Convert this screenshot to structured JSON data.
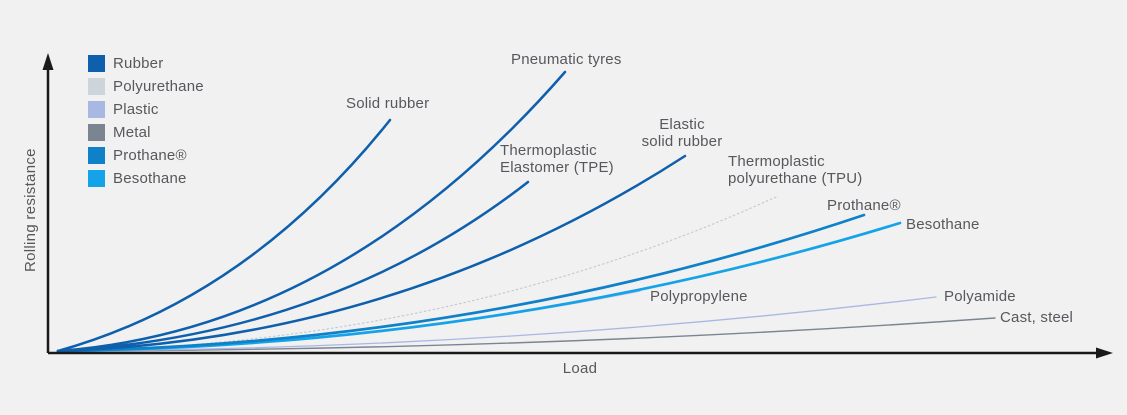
{
  "figure": {
    "background": "#f1f1f2",
    "axis_color": "#1a1a1a",
    "text_color": "#57585c",
    "xlabel": "Load",
    "ylabel": "Rolling resistance"
  },
  "legend": {
    "items": [
      {
        "label": "Rubber",
        "color": "#0e5fac"
      },
      {
        "label": "Polyurethane",
        "color": "#cdd4da"
      },
      {
        "label": "Plastic",
        "color": "#a9b8e3"
      },
      {
        "label": "Metal",
        "color": "#7b8591"
      },
      {
        "label": "Prothane®",
        "color": "#0e81c8"
      },
      {
        "label": "Besothane",
        "color": "#14a3e8"
      }
    ]
  },
  "annotations": {
    "pneumatic": {
      "line1": "Pneumatic tyres"
    },
    "solid_rubber": {
      "line1": "Solid rubber"
    },
    "tpe": {
      "line1": "Thermoplastic",
      "line2": "Elastomer (TPE)"
    },
    "elastic": {
      "line1": "Elastic",
      "line2": "solid rubber"
    },
    "tpu": {
      "line1": "Thermoplastic",
      "line2": "polyurethane (TPU)"
    },
    "prothane": {
      "line1": "Prothane®"
    },
    "besothane": {
      "line1": "Besothane"
    },
    "polypropylene": {
      "line1": "Polypropylene"
    },
    "polyamide": {
      "line1": "Polyamide"
    },
    "cast_steel": {
      "line1": "Cast, steel"
    }
  },
  "chart_data": {
    "type": "line",
    "title": "",
    "xlabel": "Load",
    "ylabel": "Rolling resistance",
    "axes_quantitative": false,
    "grid": false,
    "legend_position": "top-left",
    "axis": {
      "origin": [
        48,
        353
      ],
      "x_tip": [
        1113,
        353
      ],
      "y_tip": [
        48,
        53
      ]
    },
    "note": "Qualitative comparison: rolling resistance vs load for wheel materials; all curves rise from the common origin. Order from highest to lowest rolling resistance at equal load: Solid rubber, Pneumatic tyres, Thermoplastic Elastomer (TPE), Elastic solid rubber, Thermoplastic polyurethane (TPU), Prothane, Besothane, Polypropylene, Polyamide, Cast/steel.",
    "series": [
      {
        "id": "cast_steel",
        "name": "Cast, steel",
        "material": "Metal",
        "color": "#7b8591",
        "width": 1.4,
        "dash": "none",
        "rank_resistance": 10,
        "start": [
          58,
          351
        ],
        "control": [
          540,
          350
        ],
        "end": [
          995,
          318
        ]
      },
      {
        "id": "polyamide",
        "name": "Polyamide",
        "material": "Plastic",
        "color": "#a9b8e3",
        "width": 1.3,
        "dash": "none",
        "rank_resistance": 9,
        "start": [
          58,
          351
        ],
        "control": [
          510,
          349
        ],
        "end": [
          936,
          297
        ]
      },
      {
        "id": "polypropylene",
        "name": "Polypropylene",
        "material": "Plastic",
        "color": "#a9b8e3",
        "width": 1.3,
        "dash": "none",
        "rank_resistance": 8,
        "start": [
          58,
          351
        ],
        "control": [
          360,
          347
        ],
        "end": [
          640,
          291
        ]
      },
      {
        "id": "tpu",
        "name": "Thermoplastic polyurethane (TPU)",
        "material": "Polyurethane",
        "color": "#c3cbd2",
        "width": 1.2,
        "dash": "dotted",
        "rank_resistance": 5,
        "start": [
          58,
          351
        ],
        "control": [
          450,
          345
        ],
        "end": [
          776,
          197
        ]
      },
      {
        "id": "besothane",
        "name": "Besothane",
        "material": "Besothane",
        "color": "#14a3e8",
        "width": 2.7,
        "dash": "none",
        "rank_resistance": 7,
        "start": [
          58,
          351
        ],
        "control": [
          500,
          346
        ],
        "end": [
          900,
          223
        ]
      },
      {
        "id": "prothane",
        "name": "Prothane®",
        "material": "Prothane",
        "color": "#0e81c8",
        "width": 2.7,
        "dash": "none",
        "rank_resistance": 6,
        "start": [
          58,
          351
        ],
        "control": [
          480,
          344
        ],
        "end": [
          864,
          215
        ]
      },
      {
        "id": "elastic",
        "name": "Elastic solid rubber",
        "material": "Rubber",
        "color": "#0e5fac",
        "width": 2.5,
        "dash": "none",
        "rank_resistance": 4,
        "start": [
          58,
          351
        ],
        "control": [
          400,
          340
        ],
        "end": [
          685,
          156
        ]
      },
      {
        "id": "tpe",
        "name": "Thermoplastic Elastomer (TPE)",
        "material": "Rubber",
        "color": "#0e5fac",
        "width": 2.5,
        "dash": "none",
        "rank_resistance": 3,
        "start": [
          58,
          351
        ],
        "control": [
          330,
          336
        ],
        "end": [
          528,
          182
        ]
      },
      {
        "id": "pneumatic",
        "name": "Pneumatic tyres",
        "material": "Rubber",
        "color": "#0e5fac",
        "width": 2.5,
        "dash": "none",
        "rank_resistance": 2,
        "start": [
          58,
          351
        ],
        "control": [
          340,
          330
        ],
        "end": [
          565,
          72
        ]
      },
      {
        "id": "solid_rubber",
        "name": "Solid rubber",
        "material": "Rubber",
        "color": "#0e5fac",
        "width": 2.5,
        "dash": "none",
        "rank_resistance": 1,
        "start": [
          58,
          351
        ],
        "control": [
          248,
          298
        ],
        "end": [
          390,
          120
        ]
      }
    ]
  }
}
